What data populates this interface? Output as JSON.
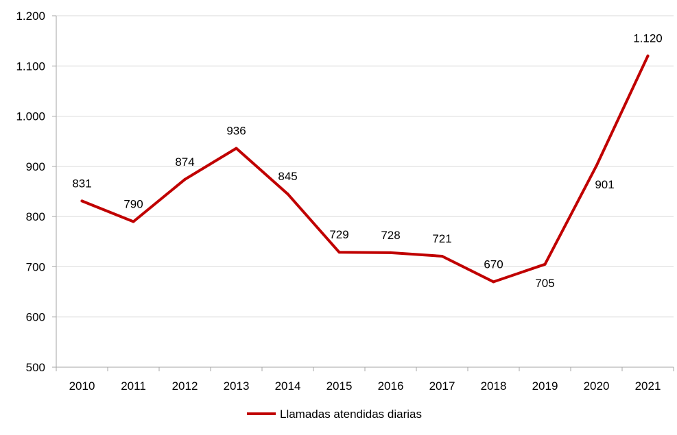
{
  "chart_data": {
    "type": "line",
    "title": "",
    "xlabel": "",
    "ylabel": "",
    "categories": [
      "2010",
      "2011",
      "2012",
      "2013",
      "2014",
      "2015",
      "2016",
      "2017",
      "2018",
      "2019",
      "2020",
      "2021"
    ],
    "series": [
      {
        "name": "Llamadas atendidas diarias",
        "values": [
          831,
          790,
          874,
          936,
          845,
          729,
          728,
          721,
          670,
          705,
          901,
          1120
        ],
        "labels": [
          "831",
          "790",
          "874",
          "936",
          "845",
          "729",
          "728",
          "721",
          "670",
          "705",
          "901",
          "1.120"
        ],
        "color": "#C00000"
      }
    ],
    "ylim": [
      500,
      1200
    ],
    "yticks": [
      500,
      600,
      700,
      800,
      900,
      1000,
      1100,
      1200
    ],
    "ytick_labels": [
      "500",
      "600",
      "700",
      "800",
      "900",
      "1.000",
      "1.100",
      "1.200"
    ],
    "grid": true,
    "legend": "bottom-center",
    "gridline_color": "#D9D9D9",
    "axis_color": "#A6A6A6"
  }
}
